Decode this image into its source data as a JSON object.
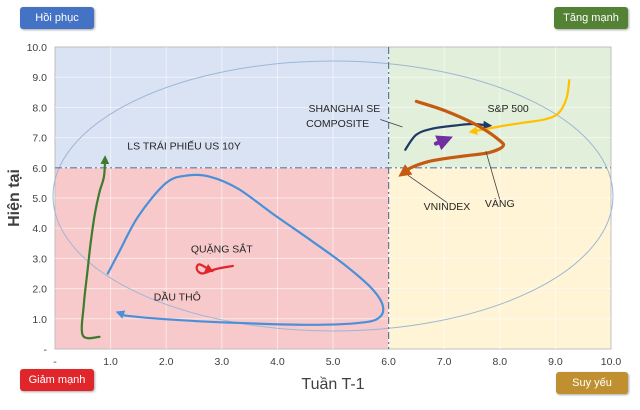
{
  "chart_data": {
    "type": "line",
    "title": "",
    "xlabel": "Tuần T-1",
    "ylabel": "Hiện tại",
    "xlim": [
      0,
      10
    ],
    "ylim": [
      0,
      10
    ],
    "x_ticks": [
      "-",
      "1.0",
      "2.0",
      "3.0",
      "4.0",
      "5.0",
      "6.0",
      "7.0",
      "8.0",
      "9.0",
      "10.0"
    ],
    "y_ticks": [
      "-",
      "1.0",
      "2.0",
      "3.0",
      "4.0",
      "5.0",
      "6.0",
      "7.0",
      "8.0",
      "9.0",
      "10.0"
    ],
    "grid": true,
    "threshold": {
      "x": 6.0,
      "y": 6.0
    },
    "quadrants": [
      {
        "name": "Hồi phục",
        "color": "#4472C4",
        "fill": "#DAE3F3"
      },
      {
        "name": "Tăng mạnh",
        "color": "#548235",
        "fill": "#E2EFDA"
      },
      {
        "name": "Giảm mạnh",
        "color": "#E0262B",
        "fill": "#F8C9CB"
      },
      {
        "name": "Suy yếu",
        "color": "#C09030",
        "fill": "#FFF4D6"
      }
    ],
    "series": [
      {
        "name": "LS TRÁI PHIẾU US 10Y",
        "color": "#3E7B2C",
        "x": [
          0.8,
          0.5,
          0.52,
          0.58,
          0.64,
          0.72,
          0.8,
          0.88,
          0.9
        ],
        "y": [
          0.4,
          0.45,
          1.5,
          2.5,
          3.5,
          4.5,
          5.2,
          5.7,
          6.3
        ]
      },
      {
        "name": "QUẶNG SẮT",
        "color": "#E0262B",
        "x": [
          3.2,
          2.9,
          2.65,
          2.55,
          2.6,
          2.8
        ],
        "y": [
          2.75,
          2.65,
          2.5,
          2.65,
          2.8,
          2.6
        ]
      },
      {
        "name": "DẦU THÔ",
        "color": "#4A90D9",
        "x": [
          0.95,
          1.15,
          1.5,
          2.0,
          2.4,
          2.8,
          3.3,
          3.9,
          4.6,
          5.2,
          5.7,
          5.9,
          5.8,
          5.4,
          4.6,
          3.5,
          2.3,
          1.3,
          1.15
        ],
        "y": [
          2.5,
          3.2,
          4.4,
          5.5,
          5.75,
          5.7,
          5.3,
          4.5,
          3.6,
          2.8,
          2.0,
          1.4,
          1.0,
          0.85,
          0.8,
          0.85,
          0.95,
          1.1,
          1.2
        ]
      },
      {
        "name": "SHANGHAI SE COMPOSITE",
        "color": "#1F3864",
        "x": [
          6.3,
          6.5,
          6.8,
          7.2,
          7.5,
          7.8
        ],
        "y": [
          6.6,
          7.1,
          7.3,
          7.4,
          7.45,
          7.4
        ]
      },
      {
        "name": "S&P 500",
        "color": "#FFC000",
        "x": [
          9.25,
          9.2,
          9.05,
          8.8,
          8.45,
          8.1,
          7.8,
          7.5
        ],
        "y": [
          8.9,
          8.3,
          7.8,
          7.6,
          7.5,
          7.4,
          7.3,
          7.2
        ]
      },
      {
        "name": "VÀNG",
        "color": "#C55A11",
        "x": [
          6.5,
          7.0,
          7.6,
          8.0,
          8.05,
          7.8,
          7.4,
          7.0,
          6.7,
          6.4,
          6.25
        ],
        "y": [
          8.2,
          7.9,
          7.4,
          6.9,
          6.7,
          6.5,
          6.4,
          6.3,
          6.2,
          6.0,
          5.8
        ]
      },
      {
        "name": "VNINDEX",
        "color": "#7030A0",
        "x": [
          6.85,
          7.05
        ],
        "y": [
          6.8,
          6.95
        ]
      }
    ],
    "annotations": [
      {
        "text": "LS TRÁI PHIẾU US 10Y",
        "x": 1.3,
        "y": 6.6,
        "anchor": "start"
      },
      {
        "text": "QUẶNG SẮT",
        "x": 3.0,
        "y": 3.2,
        "anchor": "middle"
      },
      {
        "text": "DẦU THÔ",
        "x": 2.2,
        "y": 1.6,
        "anchor": "middle"
      },
      {
        "text": "SHANGHAI SE",
        "x": 5.85,
        "y": 7.85,
        "anchor": "end"
      },
      {
        "text": "COMPOSITE",
        "x": 5.65,
        "y": 7.35,
        "anchor": "end"
      },
      {
        "text": "S&P 500",
        "x": 8.15,
        "y": 7.85,
        "anchor": "middle"
      },
      {
        "text": "VÀNG",
        "x": 8.0,
        "y": 4.7,
        "anchor": "middle"
      },
      {
        "text": "VNINDEX",
        "x": 7.05,
        "y": 4.6,
        "anchor": "middle"
      }
    ]
  }
}
